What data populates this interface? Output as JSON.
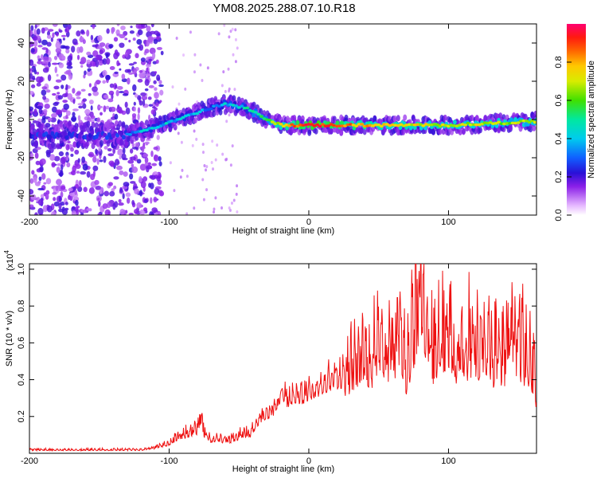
{
  "title": "YM08.2025.288.07.10.R18",
  "chart_data": [
    {
      "type": "heatmap",
      "name": "spectrogram",
      "xlabel": "Height of straight line (km)",
      "ylabel": "Frequency (Hz)",
      "xlim": [
        -200,
        163
      ],
      "ylim": [
        -50,
        50
      ],
      "xticks": [
        -200,
        -100,
        0,
        100
      ],
      "yticks": [
        -40,
        -20,
        0,
        20,
        40
      ],
      "colorbar": {
        "label": "Normalized spectral amplitude",
        "range": [
          0,
          1
        ],
        "ticks": [
          "0.0",
          "0.2",
          "0.4",
          "0.6",
          "0.8"
        ]
      },
      "ridge": [
        {
          "x": -130,
          "f": -8,
          "amp": 0.35
        },
        {
          "x": -110,
          "f": -4,
          "amp": 0.4
        },
        {
          "x": -90,
          "f": 1,
          "amp": 0.4
        },
        {
          "x": -70,
          "f": 6,
          "amp": 0.35
        },
        {
          "x": -60,
          "f": 8,
          "amp": 0.4
        },
        {
          "x": -45,
          "f": 6,
          "amp": 0.45
        },
        {
          "x": -35,
          "f": 2,
          "amp": 0.5
        },
        {
          "x": -20,
          "f": -3,
          "amp": 0.75
        },
        {
          "x": 0,
          "f": -3,
          "amp": 0.95
        },
        {
          "x": 50,
          "f": -3,
          "amp": 0.75
        },
        {
          "x": 100,
          "f": -3,
          "amp": 0.7
        },
        {
          "x": 163,
          "f": -1,
          "amp": 0.65
        }
      ]
    },
    {
      "type": "line",
      "name": "snr",
      "xlabel": "Height of straight line (km)",
      "ylabel": "SNR (10 * v/v)",
      "scale_label": "(x10",
      "scale_exp": "4",
      "xlim": [
        -200,
        163
      ],
      "ylim": [
        0,
        1.03
      ],
      "xticks": [
        -200,
        -100,
        0,
        100
      ],
      "yticks": [
        "0.2",
        "0.4",
        "0.6",
        "0.8",
        "1.0"
      ],
      "ytick_values": [
        0.2,
        0.4,
        0.6,
        0.8,
        1.0
      ],
      "series": [
        {
          "name": "SNR",
          "color": "#ee1111",
          "x": [
            -200,
            -150,
            -120,
            -110,
            -100,
            -95,
            -90,
            -85,
            -80,
            -77,
            -75,
            -70,
            -65,
            -60,
            -55,
            -50,
            -45,
            -40,
            -35,
            -30,
            -25,
            -20,
            -15,
            -10,
            -5,
            0,
            5,
            10,
            15,
            20,
            25,
            30,
            35,
            40,
            45,
            50,
            55,
            60,
            65,
            70,
            75,
            80,
            85,
            90,
            95,
            100,
            105,
            110,
            115,
            120,
            125,
            130,
            135,
            140,
            145,
            150,
            155,
            160,
            163
          ],
          "y": [
            0.02,
            0.02,
            0.02,
            0.03,
            0.06,
            0.09,
            0.11,
            0.12,
            0.14,
            0.22,
            0.12,
            0.08,
            0.09,
            0.07,
            0.08,
            0.1,
            0.11,
            0.13,
            0.2,
            0.22,
            0.25,
            0.34,
            0.3,
            0.33,
            0.32,
            0.35,
            0.36,
            0.39,
            0.41,
            0.42,
            0.43,
            0.5,
            0.58,
            0.6,
            0.55,
            0.72,
            0.6,
            0.55,
            0.78,
            0.5,
            0.72,
            1.02,
            0.75,
            0.55,
            0.68,
            0.75,
            0.6,
            0.66,
            0.62,
            0.6,
            0.7,
            0.55,
            0.6,
            0.58,
            0.66,
            0.62,
            0.58,
            0.52,
            0.38
          ]
        }
      ]
    }
  ]
}
